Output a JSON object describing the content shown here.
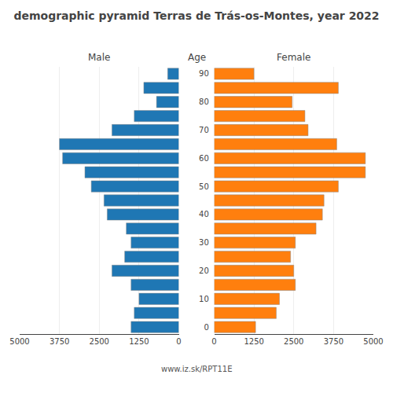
{
  "chart_data": {
    "type": "bar",
    "orientation": "horizontal",
    "title": "demographic pyramid Terras de Trás-os-Montes, year 2022",
    "ylabel": "Age",
    "annotations": [
      "www.iz.sk/RPT11E"
    ],
    "categories": [
      "0",
      null,
      "10",
      null,
      "20",
      null,
      "30",
      null,
      "40",
      null,
      "50",
      null,
      "60",
      null,
      "70",
      null,
      "80",
      null,
      "90"
    ],
    "series": [
      {
        "name": "Male",
        "values": [
          1500,
          1400,
          1250,
          1500,
          2100,
          1700,
          1500,
          1650,
          2250,
          2350,
          2750,
          2950,
          3650,
          3750,
          2100,
          1400,
          700,
          1100,
          350
        ]
      },
      {
        "name": "Female",
        "values": [
          1300,
          1950,
          2050,
          2550,
          2500,
          2400,
          2550,
          3200,
          3400,
          3450,
          3900,
          4750,
          4750,
          3850,
          2950,
          2850,
          2450,
          3900,
          1250
        ]
      }
    ],
    "xlim": [
      0,
      5000
    ],
    "xticks": [
      0,
      1250,
      2500,
      3750,
      5000
    ],
    "grid": true
  }
}
